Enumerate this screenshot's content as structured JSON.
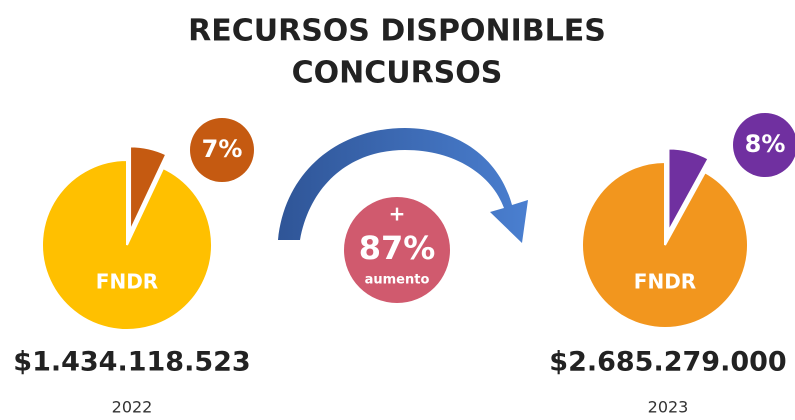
{
  "title": [
    "RECURSOS DISPONIBLES",
    "CONCURSOS"
  ],
  "chart_data": [
    {
      "type": "pie",
      "categories": [
        "FNDR",
        null
      ],
      "values": [
        93,
        7
      ],
      "value_labels": [
        null,
        "7%"
      ],
      "colors": [
        "#FFC000",
        "#C55A11"
      ],
      "amount": "$1.434.118.523",
      "year": "2022"
    },
    {
      "type": "pie",
      "categories": [
        "FNDR",
        null
      ],
      "values": [
        92,
        8
      ],
      "value_labels": [
        null,
        "8%"
      ],
      "colors": [
        "#F2961E",
        "#7030A0"
      ],
      "amount": "$2.685.279.000",
      "year": "2023"
    }
  ],
  "change": {
    "sign": "+",
    "label": "87%",
    "note": "aumento"
  }
}
